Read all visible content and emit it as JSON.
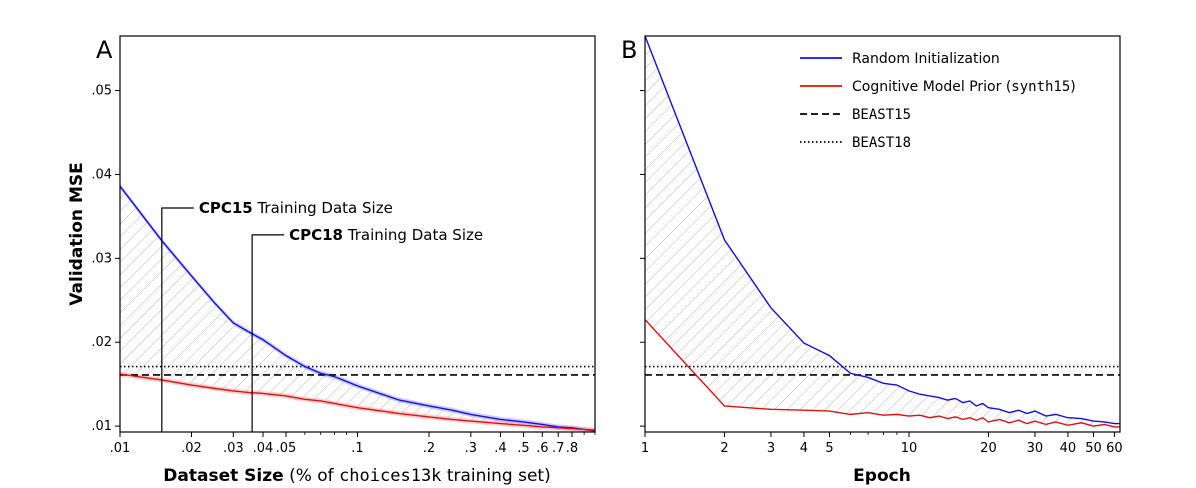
{
  "chart_data": [
    {
      "panel": "A",
      "type": "line",
      "xscale": "log",
      "xlim": [
        0.01,
        1.0
      ],
      "ylim": [
        0.0093,
        0.0565
      ],
      "xlabel_bold": "Dataset Size",
      "xlabel_pre": " (% of ",
      "xlabel_mono": "choices13k",
      "xlabel_post": " training set)",
      "ylabel": "Validation MSE",
      "x_ticks": [
        0.01,
        0.02,
        0.03,
        0.04,
        0.05,
        0.1,
        0.2,
        0.3,
        0.4,
        0.5,
        0.6,
        0.7,
        0.8
      ],
      "x_tick_labels": [
        ".01",
        ".02",
        ".03",
        ".04",
        ".05",
        ".1",
        ".2",
        ".3",
        ".4",
        ".5",
        ".6",
        ".7",
        ".8"
      ],
      "y_ticks": [
        0.01,
        0.02,
        0.03,
        0.04,
        0.05
      ],
      "y_tick_labels": [
        ".01",
        ".02",
        ".03",
        ".04",
        ".05"
      ],
      "series": [
        {
          "name": "Random Initialization",
          "color": "#1010e0",
          "x": [
            0.01,
            0.015,
            0.02,
            0.025,
            0.03,
            0.035,
            0.04,
            0.05,
            0.06,
            0.07,
            0.08,
            0.1,
            0.15,
            0.2,
            0.25,
            0.3,
            0.4,
            0.5,
            0.6,
            0.7,
            0.8,
            0.9,
            1.0
          ],
          "y": [
            0.0386,
            0.0321,
            0.0279,
            0.0247,
            0.0223,
            0.0212,
            0.0203,
            0.0184,
            0.0171,
            0.0163,
            0.0159,
            0.0148,
            0.0131,
            0.0124,
            0.0119,
            0.0114,
            0.0108,
            0.0105,
            0.0102,
            0.0099,
            0.0098,
            0.0096,
            0.0095
          ]
        },
        {
          "name": "Cognitive Model Prior (synth15)",
          "color": "#e01010",
          "x": [
            0.01,
            0.015,
            0.02,
            0.025,
            0.03,
            0.035,
            0.04,
            0.05,
            0.06,
            0.07,
            0.08,
            0.1,
            0.15,
            0.2,
            0.25,
            0.3,
            0.4,
            0.5,
            0.6,
            0.7,
            0.8,
            0.9,
            1.0
          ],
          "y": [
            0.0162,
            0.0155,
            0.0149,
            0.0145,
            0.0142,
            0.014,
            0.0139,
            0.0136,
            0.0132,
            0.013,
            0.0127,
            0.0122,
            0.0115,
            0.0111,
            0.0108,
            0.0106,
            0.0103,
            0.0101,
            0.0099,
            0.0098,
            0.0097,
            0.0096,
            0.0094
          ]
        }
      ],
      "hlines": [
        {
          "name": "BEAST15",
          "y": 0.0161,
          "style": "dashed"
        },
        {
          "name": "BEAST18",
          "y": 0.0171,
          "style": "dotted"
        }
      ],
      "annotations": [
        {
          "x": 0.015,
          "label_bold": "CPC15",
          "label_rest": " Training Data Size"
        },
        {
          "x": 0.036,
          "label_bold": "CPC18",
          "label_rest": " Training Data Size"
        }
      ]
    },
    {
      "panel": "B",
      "type": "line",
      "xscale": "log",
      "xlim": [
        1,
        63
      ],
      "ylim": [
        0.0093,
        0.0565
      ],
      "xlabel": "Epoch",
      "x_ticks": [
        1,
        2,
        3,
        4,
        5,
        10,
        20,
        30,
        40,
        50,
        60
      ],
      "x_tick_labels": [
        "1",
        "2",
        "3",
        "4",
        "5",
        "10",
        "20",
        "30",
        "40",
        "50",
        "60"
      ],
      "series": [
        {
          "name": "Random Initialization",
          "color": "#1010e0",
          "x": [
            1,
            2,
            3,
            4,
            5,
            6,
            7,
            8,
            9,
            10,
            11,
            12,
            13,
            14,
            15,
            16,
            17,
            18,
            19,
            20,
            22,
            24,
            26,
            28,
            30,
            33,
            36,
            40,
            45,
            50,
            55,
            60,
            63
          ],
          "y": [
            0.0565,
            0.0322,
            0.0241,
            0.0199,
            0.0184,
            0.0163,
            0.0158,
            0.0151,
            0.0149,
            0.0142,
            0.0138,
            0.0136,
            0.0134,
            0.0131,
            0.0133,
            0.0128,
            0.013,
            0.0124,
            0.0127,
            0.0122,
            0.012,
            0.0116,
            0.0119,
            0.0115,
            0.0118,
            0.0112,
            0.0114,
            0.011,
            0.0109,
            0.0106,
            0.0105,
            0.0103,
            0.0103
          ]
        },
        {
          "name": "Cognitive Model Prior (synth15)",
          "color": "#e01010",
          "x": [
            1,
            2,
            3,
            4,
            5,
            6,
            7,
            8,
            9,
            10,
            11,
            12,
            13,
            14,
            15,
            16,
            17,
            18,
            19,
            20,
            22,
            24,
            26,
            28,
            30,
            33,
            36,
            40,
            45,
            50,
            55,
            60,
            63
          ],
          "y": [
            0.0227,
            0.0124,
            0.012,
            0.0119,
            0.0118,
            0.0114,
            0.0116,
            0.0113,
            0.0114,
            0.0112,
            0.0113,
            0.011,
            0.0112,
            0.0109,
            0.0111,
            0.0108,
            0.011,
            0.0107,
            0.011,
            0.0105,
            0.0108,
            0.0104,
            0.0107,
            0.0103,
            0.0106,
            0.0102,
            0.0105,
            0.0101,
            0.0104,
            0.01,
            0.0102,
            0.0099,
            0.0099
          ]
        }
      ],
      "hlines": [
        {
          "name": "BEAST15",
          "y": 0.0161,
          "style": "dashed"
        },
        {
          "name": "BEAST18",
          "y": 0.0171,
          "style": "dotted"
        }
      ]
    }
  ],
  "legend": [
    {
      "text": "Random Initialization",
      "style": "solid",
      "color": "#1010e0"
    },
    {
      "text": "Cognitive Model Prior (",
      "mono": "synth15",
      "text_after": ")",
      "style": "solid",
      "color": "#e01010"
    },
    {
      "mono": "BEAST15",
      "style": "dashed",
      "color": "#000000"
    },
    {
      "mono": "BEAST18",
      "style": "dotted",
      "color": "#000000"
    }
  ]
}
